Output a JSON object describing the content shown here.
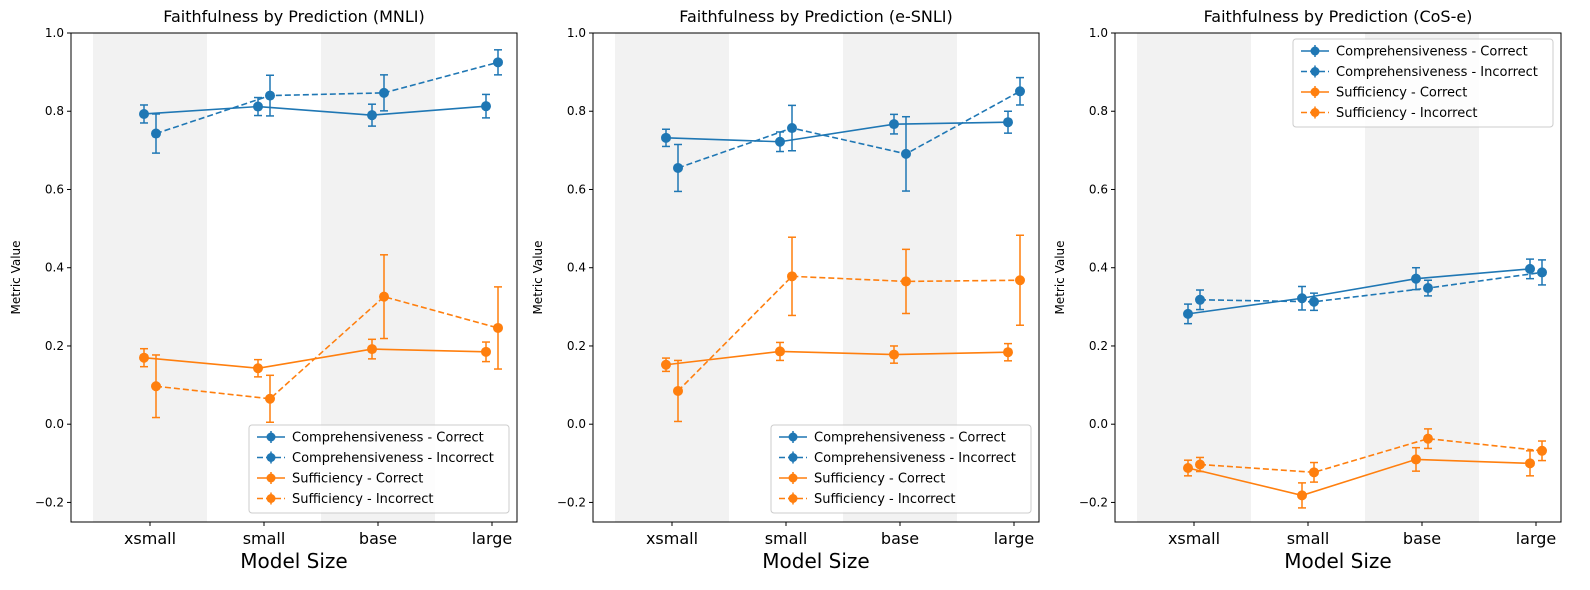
{
  "colors": {
    "comprehensiveness": "#1f77b4",
    "sufficiency": "#ff7f0e",
    "band": "#f2f2f2"
  },
  "chart_data": [
    {
      "type": "line",
      "title": "Faithfulness by Prediction (MNLI)",
      "xlabel": "Model Size",
      "ylabel": "Metric Value",
      "categories": [
        "xsmall",
        "small",
        "base",
        "large"
      ],
      "ylim": [
        -0.25,
        1.0
      ],
      "yticks": [
        "−0.2",
        "0.0",
        "0.2",
        "0.4",
        "0.6",
        "0.8",
        "1.0"
      ],
      "shaded_categories": [
        "xsmall",
        "base"
      ],
      "legend_position": "lower right",
      "series": [
        {
          "name": "Comprehensiveness - Correct",
          "style": "solid",
          "color": "#1f77b4",
          "values": [
            0.793,
            0.812,
            0.79,
            0.813
          ],
          "errors": [
            0.023,
            0.023,
            0.028,
            0.03
          ]
        },
        {
          "name": "Comprehensiveness - Incorrect",
          "style": "dashed",
          "color": "#1f77b4",
          "values": [
            0.743,
            0.84,
            0.847,
            0.925
          ],
          "errors": [
            0.05,
            0.052,
            0.046,
            0.032
          ]
        },
        {
          "name": "Sufficiency - Correct",
          "style": "solid",
          "color": "#ff7f0e",
          "values": [
            0.17,
            0.143,
            0.192,
            0.185
          ],
          "errors": [
            0.023,
            0.022,
            0.025,
            0.025
          ]
        },
        {
          "name": "Sufficiency - Incorrect",
          "style": "dashed",
          "color": "#ff7f0e",
          "values": [
            0.097,
            0.065,
            0.326,
            0.246
          ],
          "errors": [
            0.08,
            0.06,
            0.107,
            0.105
          ]
        }
      ]
    },
    {
      "type": "line",
      "title": "Faithfulness by Prediction (e-SNLI)",
      "xlabel": "Model Size",
      "ylabel": "Metric Value",
      "categories": [
        "xsmall",
        "small",
        "base",
        "large"
      ],
      "ylim": [
        -0.25,
        1.0
      ],
      "yticks": [
        "−0.2",
        "0.0",
        "0.2",
        "0.4",
        "0.6",
        "0.8",
        "1.0"
      ],
      "shaded_categories": [
        "xsmall",
        "base"
      ],
      "legend_position": "lower right",
      "series": [
        {
          "name": "Comprehensiveness - Correct",
          "style": "solid",
          "color": "#1f77b4",
          "values": [
            0.732,
            0.722,
            0.767,
            0.772
          ],
          "errors": [
            0.022,
            0.025,
            0.025,
            0.028
          ]
        },
        {
          "name": "Comprehensiveness - Incorrect",
          "style": "dashed",
          "color": "#1f77b4",
          "values": [
            0.655,
            0.757,
            0.691,
            0.851
          ],
          "errors": [
            0.06,
            0.058,
            0.095,
            0.035
          ]
        },
        {
          "name": "Sufficiency - Correct",
          "style": "solid",
          "color": "#ff7f0e",
          "values": [
            0.152,
            0.186,
            0.178,
            0.184
          ],
          "errors": [
            0.017,
            0.023,
            0.022,
            0.022
          ]
        },
        {
          "name": "Sufficiency - Incorrect",
          "style": "dashed",
          "color": "#ff7f0e",
          "values": [
            0.085,
            0.378,
            0.365,
            0.368
          ],
          "errors": [
            0.078,
            0.1,
            0.082,
            0.115
          ]
        }
      ]
    },
    {
      "type": "line",
      "title": "Faithfulness by Prediction (CoS-e)",
      "xlabel": "Model Size",
      "ylabel": "Metric Value",
      "categories": [
        "xsmall",
        "small",
        "base",
        "large"
      ],
      "ylim": [
        -0.25,
        1.0
      ],
      "yticks": [
        "−0.2",
        "0.0",
        "0.2",
        "0.4",
        "0.6",
        "0.8",
        "1.0"
      ],
      "shaded_categories": [
        "xsmall",
        "base"
      ],
      "legend_position": "upper right",
      "series": [
        {
          "name": "Comprehensiveness - Correct",
          "style": "solid",
          "color": "#1f77b4",
          "values": [
            0.282,
            0.322,
            0.372,
            0.397
          ],
          "errors": [
            0.025,
            0.03,
            0.028,
            0.025
          ]
        },
        {
          "name": "Comprehensiveness - Incorrect",
          "style": "dashed",
          "color": "#1f77b4",
          "values": [
            0.318,
            0.313,
            0.348,
            0.388
          ],
          "errors": [
            0.025,
            0.022,
            0.02,
            0.032
          ]
        },
        {
          "name": "Sufficiency - Correct",
          "style": "solid",
          "color": "#ff7f0e",
          "values": [
            -0.112,
            -0.182,
            -0.09,
            -0.1
          ],
          "errors": [
            0.02,
            0.032,
            0.03,
            0.032
          ]
        },
        {
          "name": "Sufficiency - Incorrect",
          "style": "dashed",
          "color": "#ff7f0e",
          "values": [
            -0.103,
            -0.123,
            -0.037,
            -0.068
          ],
          "errors": [
            0.018,
            0.025,
            0.025,
            0.025
          ]
        }
      ]
    }
  ]
}
